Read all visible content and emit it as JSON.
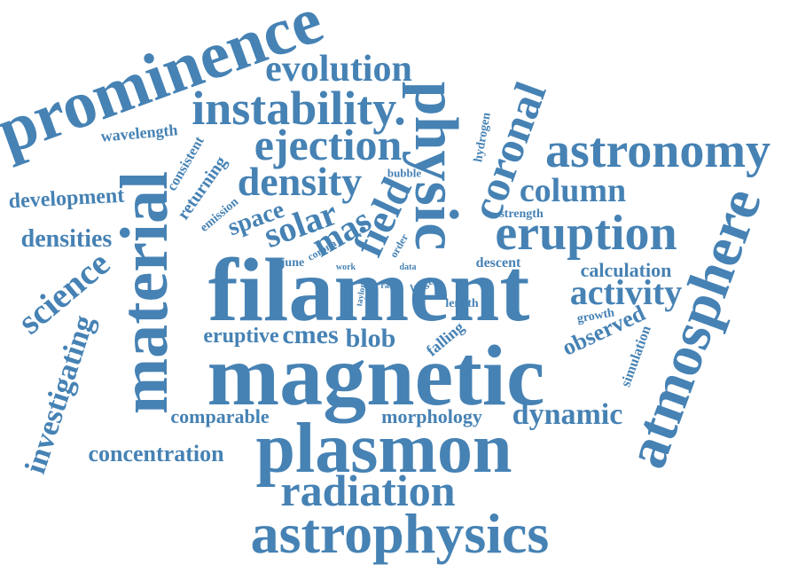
{
  "word_cloud": {
    "color": "#4682b4",
    "words": [
      "prominence",
      "evolution",
      "instability.",
      "physic",
      "coronal",
      "wavelength",
      "ejection",
      "astronomy",
      "consistent",
      "hydrogen",
      "bubble",
      "density",
      "returning",
      "development",
      "material",
      "column",
      "emission",
      "space",
      "solar",
      "strength",
      "densities",
      "mas",
      "field",
      "corona",
      "eruption",
      "order",
      "science",
      "june",
      "work",
      "data",
      "descent",
      "calculation",
      "filament",
      "taylor",
      "rate",
      "larger",
      "activity",
      "length",
      "investigating",
      "growth",
      "observed",
      "eruptive",
      "cmes",
      "blob",
      "falling",
      "simulation",
      "atmosphere",
      "magnetic",
      "comparable",
      "morphology",
      "dynamic",
      "concentration",
      "plasmon",
      "radiation",
      "astrophysics"
    ]
  }
}
